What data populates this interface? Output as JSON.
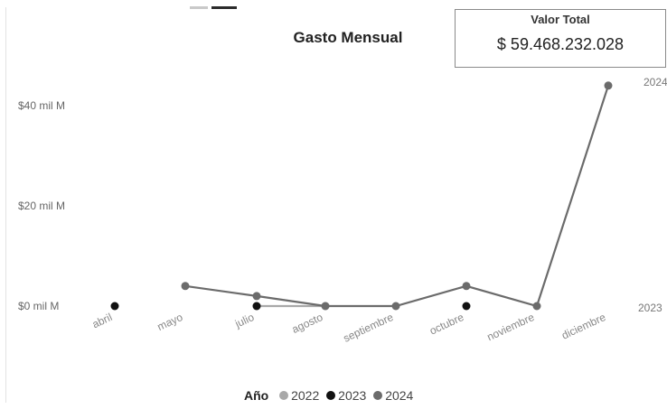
{
  "chart_data": {
    "type": "line",
    "title": "Gasto Mensual",
    "categories": [
      "abril",
      "mayo",
      "julio",
      "agosto",
      "septiembre",
      "octubre",
      "noviembre",
      "diciembre"
    ],
    "yticks": [
      "$40 mil M",
      "$20 mil M",
      "$0 mil M"
    ],
    "ytick_values": [
      40,
      20,
      0
    ],
    "y_unit": "mil M",
    "ylim": [
      0,
      46
    ],
    "right_labels": [
      "2024",
      "2023"
    ],
    "legend": {
      "title": "Año",
      "placement": "bottom"
    },
    "series": [
      {
        "name": "2022",
        "color": "#a8a8a8",
        "values": [
          null,
          null,
          0,
          0,
          null,
          null,
          null,
          null
        ]
      },
      {
        "name": "2023",
        "color": "#111111",
        "values": [
          0,
          null,
          0,
          null,
          null,
          0,
          null,
          null
        ]
      },
      {
        "name": "2024",
        "color": "#6b6b6b",
        "values": [
          null,
          4,
          2,
          0,
          0,
          4,
          0,
          44
        ]
      }
    ]
  },
  "kpi": {
    "label": "Valor Total",
    "value": "$ 59.468.232.028"
  }
}
